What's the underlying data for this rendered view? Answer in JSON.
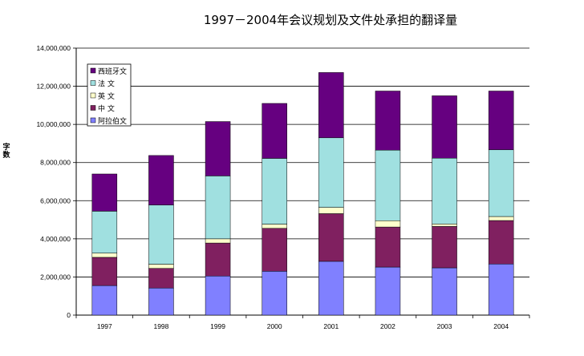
{
  "chart_data": {
    "type": "bar",
    "stacked": true,
    "title": "1997－2004年会议规划及文件处承担的翻译量",
    "xlabel": "",
    "ylabel": "字数",
    "ylim": [
      0,
      14000000
    ],
    "y_ticks": [
      "0",
      "2,000,000",
      "4,000,000",
      "6,000,000",
      "8,000,000",
      "10,000,000",
      "12,000,000",
      "14,000,000"
    ],
    "categories": [
      "1997",
      "1998",
      "1999",
      "2000",
      "2001",
      "2002",
      "2003",
      "2004"
    ],
    "grid": true,
    "legend_position": "top-left",
    "series": [
      {
        "name": "阿拉伯文",
        "color": "#8080FF",
        "values": [
          1550000,
          1420000,
          2050000,
          2300000,
          2820000,
          2520000,
          2480000,
          2680000
        ]
      },
      {
        "name": "中 文",
        "color": "#802060",
        "values": [
          1480000,
          1030000,
          1730000,
          2250000,
          2500000,
          2100000,
          2170000,
          2280000
        ]
      },
      {
        "name": "英 文",
        "color": "#FFFFCC",
        "values": [
          220000,
          220000,
          220000,
          220000,
          330000,
          330000,
          130000,
          210000
        ]
      },
      {
        "name": "法 文",
        "color": "#A0E0E0",
        "values": [
          2200000,
          3100000,
          3300000,
          3450000,
          3650000,
          3700000,
          3450000,
          3500000
        ]
      },
      {
        "name": "西班牙文",
        "color": "#660080",
        "values": [
          1950000,
          2600000,
          2850000,
          2880000,
          3420000,
          3100000,
          3270000,
          3080000
        ]
      }
    ]
  }
}
